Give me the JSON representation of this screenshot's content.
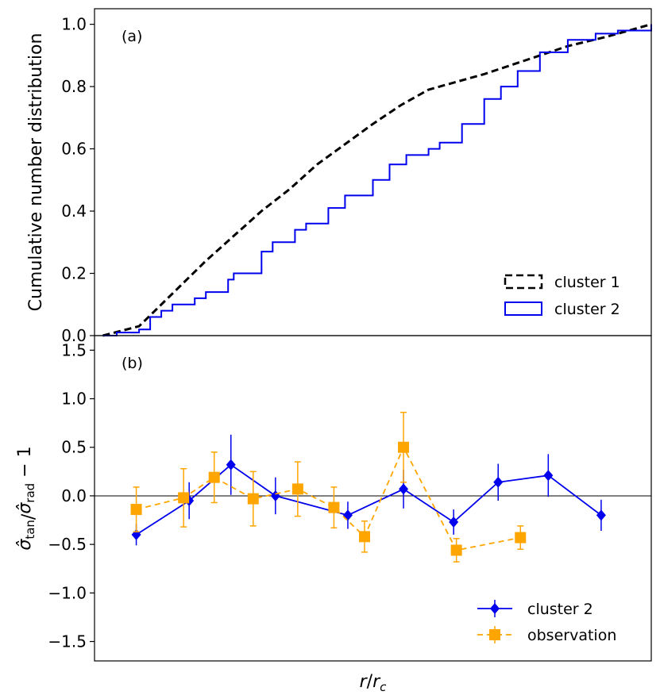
{
  "chart_data": [
    {
      "type": "line",
      "panel_label": "(a)",
      "ylabel": "Cumulative number distribution",
      "ylim": [
        0.0,
        1.05
      ],
      "yticks": [
        0.0,
        0.2,
        0.4,
        0.6,
        0.8,
        1.0
      ],
      "ytick_labels": [
        "0.0",
        "0.2",
        "0.4",
        "0.6",
        "0.8",
        "1.0"
      ],
      "xlim": [
        0.0,
        1.0
      ],
      "legend_position": "lower-right",
      "series": [
        {
          "name": "cluster 1",
          "style": "dashed",
          "color": "#000000",
          "x": [
            0.015,
            0.08,
            0.12,
            0.2,
            0.3,
            0.35,
            0.4,
            0.5,
            0.55,
            0.6,
            0.7,
            0.8,
            0.85,
            0.92,
            1.0
          ],
          "y": [
            0.0,
            0.03,
            0.1,
            0.24,
            0.4,
            0.47,
            0.55,
            0.68,
            0.74,
            0.79,
            0.84,
            0.9,
            0.93,
            0.96,
            1.0
          ]
        },
        {
          "name": "cluster 2",
          "style": "step",
          "color": "#0000ee",
          "x": [
            0.015,
            0.04,
            0.08,
            0.1,
            0.12,
            0.14,
            0.18,
            0.2,
            0.24,
            0.25,
            0.3,
            0.32,
            0.36,
            0.38,
            0.42,
            0.45,
            0.5,
            0.53,
            0.56,
            0.6,
            0.62,
            0.66,
            0.7,
            0.73,
            0.76,
            0.8,
            0.85,
            0.9,
            0.94,
            1.0
          ],
          "y": [
            0.0,
            0.01,
            0.02,
            0.06,
            0.08,
            0.1,
            0.12,
            0.14,
            0.18,
            0.2,
            0.27,
            0.3,
            0.34,
            0.36,
            0.41,
            0.45,
            0.5,
            0.55,
            0.58,
            0.6,
            0.62,
            0.68,
            0.76,
            0.8,
            0.85,
            0.91,
            0.95,
            0.97,
            0.98,
            1.0
          ]
        }
      ]
    },
    {
      "type": "line",
      "panel_label": "(b)",
      "ylabel": "σ̂tan/σ̂rad − 1",
      "xlabel": "r/rc",
      "ylim": [
        -1.7,
        1.65
      ],
      "yticks": [
        -1.5,
        -1.0,
        -0.5,
        0.0,
        0.5,
        1.0,
        1.5
      ],
      "ytick_labels": [
        "−1.5",
        "−1.0",
        "−0.5",
        "0.0",
        "0.5",
        "1.0",
        "1.5"
      ],
      "xlim": [
        0.0,
        1.0
      ],
      "legend_position": "lower-right",
      "series": [
        {
          "name": "cluster 2",
          "style": "solid",
          "marker": "diamond",
          "color": "#0000ee",
          "x": [
            0.075,
            0.17,
            0.245,
            0.325,
            0.455,
            0.555,
            0.645,
            0.725,
            0.815,
            0.91
          ],
          "y": [
            -0.4,
            -0.05,
            0.32,
            0.0,
            -0.2,
            0.07,
            -0.27,
            0.14,
            0.21,
            -0.2
          ],
          "yerr": [
            0.11,
            0.19,
            0.31,
            0.19,
            0.14,
            0.2,
            0.13,
            0.19,
            0.22,
            0.16
          ]
        },
        {
          "name": "observation",
          "style": "dashed",
          "marker": "square",
          "color": "#ffa500",
          "x": [
            0.075,
            0.16,
            0.215,
            0.285,
            0.365,
            0.43,
            0.485,
            0.555,
            0.65,
            0.765
          ],
          "y": [
            -0.14,
            -0.02,
            0.19,
            -0.03,
            0.07,
            -0.12,
            -0.42,
            0.5,
            -0.56,
            -0.43
          ],
          "yerr": [
            0.23,
            0.3,
            0.26,
            0.28,
            0.28,
            0.21,
            0.16,
            0.36,
            0.12,
            0.12
          ]
        }
      ]
    }
  ]
}
